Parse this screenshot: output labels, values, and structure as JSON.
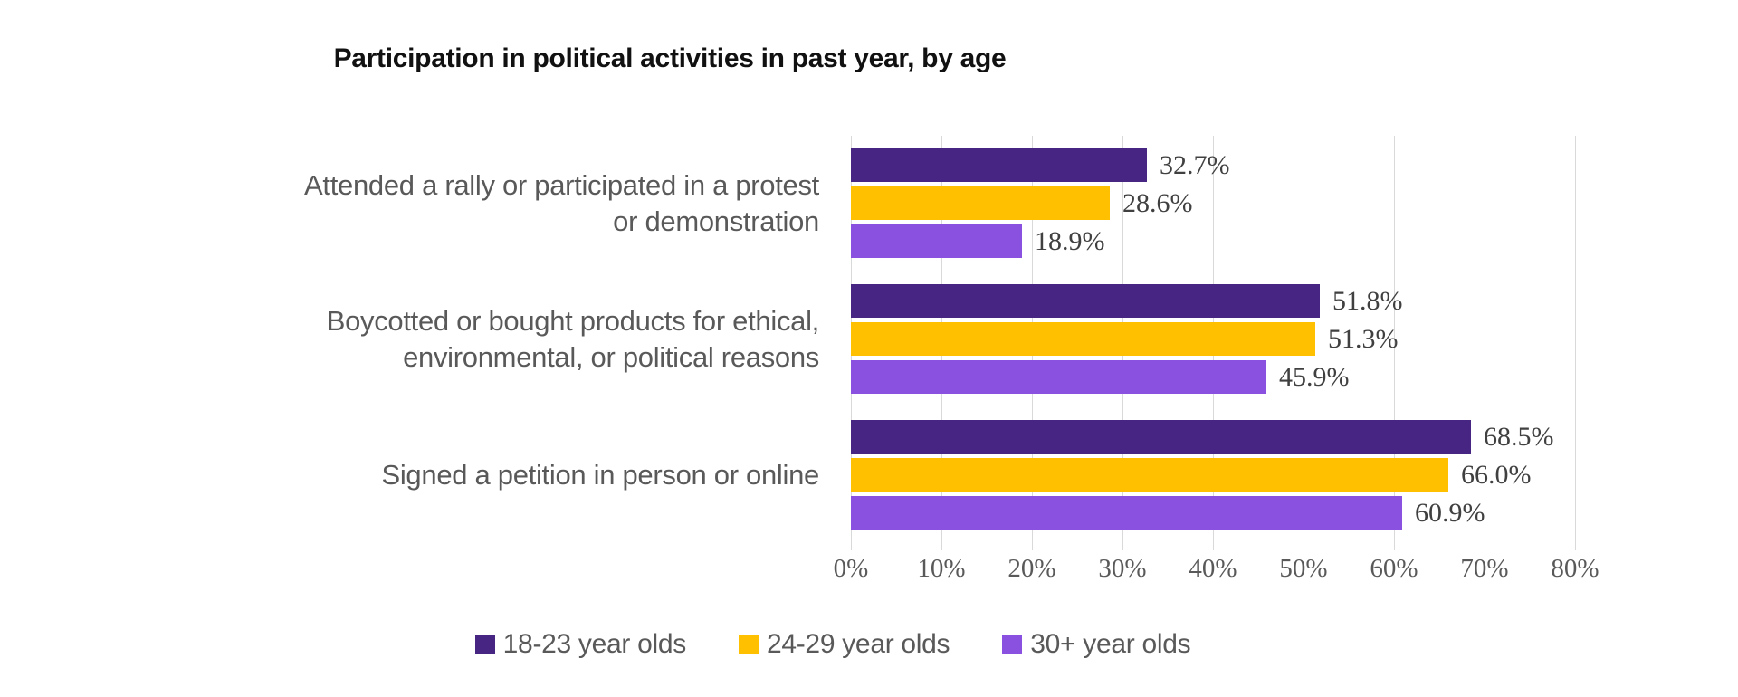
{
  "title": "Participation in political activities in past year, by age",
  "chart_data": {
    "type": "bar",
    "orientation": "horizontal",
    "title": "Participation in political activities in past year, by age",
    "categories": [
      [
        "Attended a rally or participated in a protest",
        "or demonstration"
      ],
      [
        "Boycotted or bought products for ethical,",
        "environmental, or political reasons"
      ],
      [
        "Signed a petition in person or online"
      ]
    ],
    "series": [
      {
        "name": "18-23 year olds",
        "color": "#472583",
        "values": [
          32.7,
          51.8,
          68.5
        ]
      },
      {
        "name": "24-29 year olds",
        "color": "#FFC000",
        "values": [
          28.6,
          51.3,
          66.0
        ]
      },
      {
        "name": "30+ year olds",
        "color": "#8A50E0",
        "values": [
          18.9,
          45.9,
          60.9
        ]
      }
    ],
    "value_labels": [
      [
        "32.7%",
        "51.8%",
        "68.5%"
      ],
      [
        "28.6%",
        "51.3%",
        "66.0%"
      ],
      [
        "18.9%",
        "45.9%",
        "60.9%"
      ]
    ],
    "x_ticks": [
      "0%",
      "10%",
      "20%",
      "30%",
      "40%",
      "50%",
      "60%",
      "70%",
      "80%"
    ],
    "xlim": [
      0,
      80
    ],
    "grid": true,
    "legend_position": "bottom"
  },
  "colors": {
    "background": "#FFFFFF",
    "title_text": "#111111",
    "muted_text": "#595959",
    "data_label_text": "#404040",
    "gridline": "#D9D9D9"
  }
}
